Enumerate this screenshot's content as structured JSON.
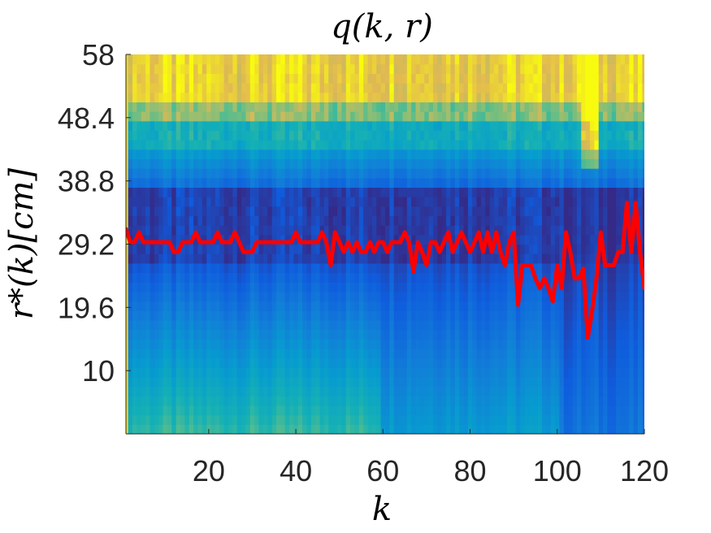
{
  "chart_data": {
    "type": "heatmap",
    "title": "q(k, r)",
    "xlabel": "k",
    "ylabel": "r*(k)[cm]",
    "xlim": [
      1,
      120
    ],
    "ylim": [
      0.4,
      58
    ],
    "x_ticks": [
      20,
      40,
      60,
      80,
      100,
      120
    ],
    "x_tick_labels": [
      "20",
      "40",
      "60",
      "80",
      "100",
      "120"
    ],
    "y_ticks": [
      10,
      19.6,
      29.2,
      38.8,
      48.4,
      58
    ],
    "y_tick_labels": [
      "10",
      "19.6",
      "29.2",
      "38.8",
      "48.4",
      "58"
    ],
    "colormap": "parula",
    "grid": false,
    "heatmap_description": "q(k,r) is high (yellow) for r above about 50 cm and low (dark blue) in a band near r = 27-37 cm; values rise again toward small r (cyan/green at the bottom for small k).",
    "line_series": {
      "name": "r*(k)",
      "color": "#ff0000",
      "values": [
        31.5,
        29.5,
        29.5,
        31,
        29.5,
        29.5,
        29.5,
        29.5,
        29.5,
        29.5,
        29.5,
        28,
        28,
        29.5,
        29.5,
        29.5,
        31,
        29.5,
        29.5,
        29.5,
        29.5,
        31,
        29.5,
        29.5,
        29.5,
        31,
        29.5,
        28,
        28,
        28,
        29.5,
        29.5,
        29.5,
        29.5,
        29.5,
        29.5,
        29.5,
        29.5,
        29.5,
        31,
        29.5,
        29.5,
        29.5,
        29.5,
        29.5,
        31,
        29.5,
        26,
        31,
        29.5,
        28,
        29.5,
        28,
        29.5,
        28,
        28,
        29.5,
        28,
        29.5,
        29.5,
        28,
        29.5,
        29.5,
        29.5,
        31,
        29.5,
        25,
        29.5,
        28,
        26,
        29.5,
        29.5,
        28,
        29.5,
        31,
        28,
        29.5,
        31,
        29.5,
        28,
        29.5,
        31,
        28,
        31,
        28,
        31,
        28,
        26,
        29.5,
        31,
        20,
        26,
        26,
        26,
        24,
        22.5,
        24,
        22.5,
        20.5,
        26,
        22.5,
        31,
        28,
        24,
        24,
        25.5,
        15,
        19,
        24,
        31,
        26,
        26,
        26,
        28,
        28,
        35.5,
        28,
        35.5,
        28,
        22.5
      ]
    }
  }
}
